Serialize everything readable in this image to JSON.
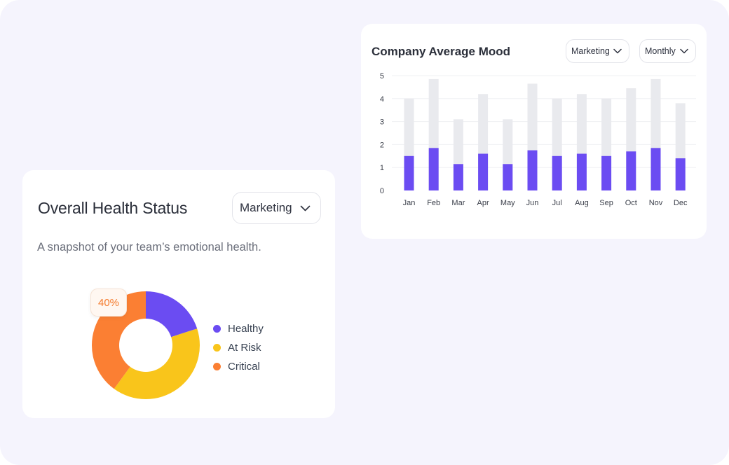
{
  "mood_card": {
    "title": "Company Average Mood",
    "team_filter": "Marketing",
    "period_filter": "Monthly"
  },
  "health_card": {
    "title": "Overall Health Status",
    "team_filter": "Marketing",
    "subtitle": "A snapshot of your team’s emotional health.",
    "tooltip": "40%",
    "legend": [
      {
        "label": "Healthy",
        "color": "#6b4cf2"
      },
      {
        "label": "At Risk",
        "color": "#f9c51b"
      },
      {
        "label": "Critical",
        "color": "#fb7f33"
      }
    ]
  },
  "icons": {
    "dropdown": "chevron-down-icon"
  },
  "colors": {
    "accent": "#6b4cf2",
    "bar_track": "#e9eaee",
    "healthy": "#6b4cf2",
    "at_risk": "#f9c51b",
    "critical": "#fb7f33"
  },
  "chart_data": [
    {
      "type": "bar",
      "title": "Company Average Mood",
      "categories": [
        "Jan",
        "Feb",
        "Mar",
        "Apr",
        "May",
        "Jun",
        "Jul",
        "Aug",
        "Sep",
        "Oct",
        "Nov",
        "Dec"
      ],
      "series": [
        {
          "values": [
            1.5,
            1.85,
            1.15,
            1.6,
            1.15,
            1.75,
            1.5,
            1.6,
            1.5,
            1.7,
            1.85,
            1.4
          ]
        },
        {
          "values": [
            4.0,
            4.85,
            3.1,
            4.2,
            3.1,
            4.65,
            4.0,
            4.2,
            4.0,
            4.45,
            4.85,
            3.8
          ]
        }
      ],
      "ylim": [
        0,
        5
      ],
      "yticks": [
        0,
        1,
        2,
        3,
        4,
        5
      ],
      "grid": true
    },
    {
      "type": "pie",
      "title": "Overall Health Status",
      "categories": [
        "Healthy",
        "At Risk",
        "Critical"
      ],
      "values": [
        20,
        40,
        40
      ],
      "donut": true
    }
  ]
}
